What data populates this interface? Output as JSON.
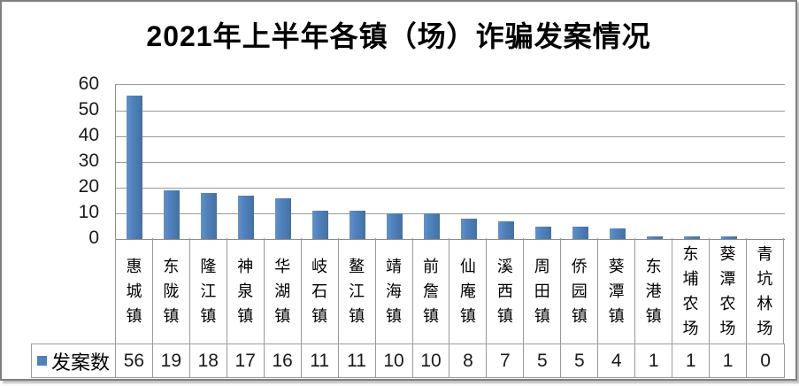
{
  "window": {
    "background": "#ffffff",
    "frame_color": "#7f7f7f"
  },
  "chart_data": {
    "type": "bar",
    "title": "2021年上半年各镇（场）诈骗发案情况",
    "series_name": "发案数",
    "categories": [
      "惠城镇",
      "东陇镇",
      "隆江镇",
      "神泉镇",
      "华湖镇",
      "岐石镇",
      "鳌江镇",
      "靖海镇",
      "前詹镇",
      "仙庵镇",
      "溪西镇",
      "周田镇",
      "侨园镇",
      "葵潭镇",
      "东港镇",
      "东埔农场",
      "葵潭农场",
      "青坑林场"
    ],
    "values": [
      56,
      19,
      18,
      17,
      16,
      11,
      11,
      10,
      10,
      8,
      7,
      5,
      5,
      4,
      1,
      1,
      1,
      0
    ],
    "xlabel": "",
    "ylabel": "",
    "ylim": [
      0,
      60
    ],
    "yticks": [
      0,
      10,
      20,
      30,
      40,
      50,
      60
    ],
    "grid": true,
    "gridline_color": "#9a9a9a",
    "bar_color": "#4f81bd",
    "legend_position": "bottom-table",
    "data_table_shown": true
  }
}
